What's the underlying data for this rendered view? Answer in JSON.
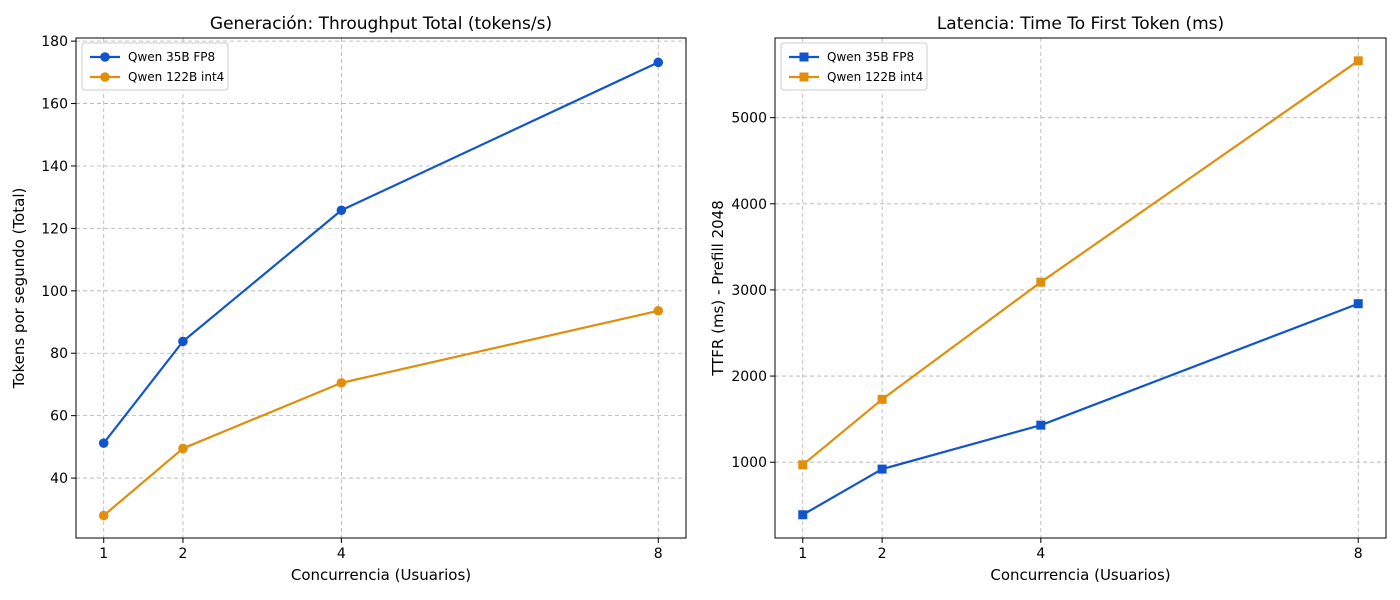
{
  "chart_data": [
    {
      "type": "line",
      "title": "Generación: Throughput Total (tokens/s)",
      "xlabel": "Concurrencia (Usuarios)",
      "ylabel": "Tokens por segundo (Total)",
      "x": [
        1,
        2,
        4,
        8
      ],
      "x_ticks": [
        1,
        2,
        4,
        8
      ],
      "xlim": [
        0.65,
        8.35
      ],
      "ylim": [
        20.8,
        181
      ],
      "y_ticks": [
        40,
        60,
        80,
        100,
        120,
        140,
        160,
        180
      ],
      "grid": true,
      "legend_position": "top-left",
      "marker": "circle",
      "series": [
        {
          "name": "Qwen 35B FP8",
          "color": "#1155cc",
          "values": [
            51.2,
            83.8,
            125.8,
            173.2
          ]
        },
        {
          "name": "Qwen 122B int4",
          "color": "#e08e0b",
          "values": [
            28.0,
            49.5,
            70.5,
            93.6
          ]
        }
      ]
    },
    {
      "type": "line",
      "title": "Latencia: Time To First Token (ms)",
      "xlabel": "Concurrencia (Usuarios)",
      "ylabel": "TTFR (ms) - Prefill 2048",
      "x": [
        1,
        2,
        4,
        8
      ],
      "x_ticks": [
        1,
        2,
        4,
        8
      ],
      "xlim": [
        0.65,
        8.35
      ],
      "ylim": [
        120,
        5925
      ],
      "y_ticks": [
        1000,
        2000,
        3000,
        4000,
        5000
      ],
      "grid": true,
      "legend_position": "top-left",
      "marker": "square",
      "series": [
        {
          "name": "Qwen 35B FP8",
          "color": "#1155cc",
          "values": [
            390,
            920,
            1430,
            2840
          ]
        },
        {
          "name": "Qwen 122B int4",
          "color": "#e08e0b",
          "values": [
            970,
            1730,
            3090,
            5660
          ]
        }
      ]
    }
  ]
}
